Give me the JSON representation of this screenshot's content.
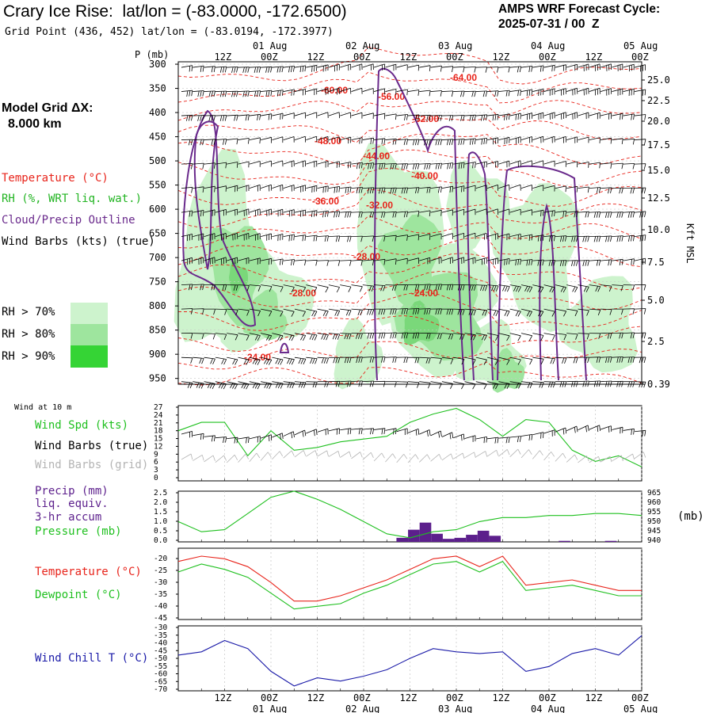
{
  "header": {
    "title": "Crary Ice Rise:  lat/lon = (-83.0000, -172.6500)",
    "subtitle": "Grid Point (436, 452) lat/lon = (-83.0194, -172.3977)",
    "cycle_line1": "AMPS WRF Forecast Cycle:",
    "cycle_line2": "2025-07-31 / 00  Z",
    "grid_line1": "Model Grid ΔX:",
    "grid_line2": "8.000 km"
  },
  "colors": {
    "temp": "#e8241b",
    "rh": "#22b422",
    "cloud": "#6a2a8c",
    "wind": "#000000",
    "windgrid": "#b4b4b4",
    "dew": "#1fc01f",
    "chill": "#1a1aa8",
    "precip": "#5c1f8c",
    "light": "#cdf3cd",
    "mid": "#9ee59e",
    "dark": "#35d435"
  },
  "time_axis": {
    "hour_labels": [
      "12Z",
      "00Z",
      "12Z",
      "00Z",
      "12Z",
      "00Z",
      "12Z",
      "00Z",
      "12Z",
      "00Z"
    ],
    "date_labels": [
      "01 Aug",
      "02 Aug",
      "03 Aug",
      "04 Aug",
      "05 Aug"
    ]
  },
  "sounding": {
    "p_label": "P (mb)",
    "pressure_ticks": [
      "300",
      "350",
      "400",
      "450",
      "500",
      "550",
      "600",
      "650",
      "700",
      "750",
      "800",
      "850",
      "900",
      "950"
    ],
    "height_ticks": [
      "25.0",
      "22.5",
      "20.0",
      "17.5",
      "15.0",
      "12.5",
      "10.0",
      "7.5",
      "5.0",
      "2.5",
      "0.39"
    ],
    "height_axis_label": "Kft MSL",
    "legend": {
      "temperature": "Temperature (°C)",
      "rh": "RH (%, WRT liq. wat.)",
      "cloud": "Cloud/Precip Outline",
      "wind": "Wind Barbs (kts) (true)"
    },
    "rh_legend": [
      "RH > 70%",
      "RH > 80%",
      "RH > 90%"
    ],
    "isotherm_labels": [
      "-64.00",
      "-60.00",
      "-56.00",
      "-52.00",
      "-48.00",
      "-44.00",
      "-40.00",
      "-36.00",
      "-32.00",
      "-28.00",
      "-28.00",
      "-24.00",
      "-24.00"
    ]
  },
  "surface": {
    "wind_label": "Wind at 10 m",
    "legend": {
      "spd": "Wind Spd (kts)",
      "barbs": "Wind Barbs (true)",
      "grid": "Wind Barbs (grid)"
    },
    "ticks": [
      "27",
      "24",
      "21",
      "18",
      "15",
      "12",
      "9",
      "6",
      "3",
      "0"
    ]
  },
  "precip": {
    "legend": [
      "Precip (mm)",
      "liq. equiv.",
      "3-hr accum",
      "Pressure (mb)"
    ],
    "left_ticks": [
      "2.5",
      "2.0",
      "1.5",
      "1.0",
      "0.5",
      "0.0"
    ],
    "right_ticks": [
      "965",
      "960",
      "955",
      "950",
      "945",
      "940"
    ],
    "right_unit": "(mb)"
  },
  "temp_panel": {
    "legend": [
      "Temperature (°C)",
      "Dewpoint (°C)"
    ],
    "ticks": [
      "-20",
      "-25",
      "-30",
      "-35",
      "-40",
      "-45"
    ]
  },
  "chill_panel": {
    "legend": "Wind Chill T (°C)",
    "ticks": [
      "-30",
      "-35",
      "-40",
      "-45",
      "-50",
      "-55",
      "-60",
      "-65",
      "-70"
    ]
  },
  "chart_data": [
    {
      "type": "line",
      "name_hint": "surface wind",
      "x_hours": [
        0,
        6,
        12,
        18,
        24,
        30,
        36,
        42,
        48,
        54,
        60,
        66,
        72,
        78,
        84,
        90,
        96,
        102,
        108,
        114,
        120
      ],
      "series": [
        {
          "name": "Wind Spd (kts)",
          "values": [
            18,
            21,
            21,
            9,
            18,
            11,
            12,
            14,
            15,
            16,
            21,
            24,
            26,
            22,
            16,
            22,
            21,
            11,
            7,
            9,
            5
          ]
        }
      ],
      "ylim": [
        0,
        27
      ]
    },
    {
      "type": "bar",
      "name_hint": "precip and pressure",
      "x_hours": [
        0,
        6,
        12,
        18,
        24,
        30,
        36,
        42,
        48,
        54,
        60,
        66,
        72,
        78,
        84,
        90,
        96,
        102,
        108,
        114,
        120
      ],
      "pressure_mb": [
        950,
        945,
        946,
        954,
        962,
        965,
        961,
        956,
        950,
        944,
        942,
        945,
        946,
        950,
        952,
        952,
        953,
        953,
        954,
        954,
        953
      ],
      "precip_bars": [
        {
          "h": 58,
          "v": 0.2
        },
        {
          "h": 61,
          "v": 0.6
        },
        {
          "h": 64,
          "v": 0.95
        },
        {
          "h": 67,
          "v": 0.4
        },
        {
          "h": 70,
          "v": 0.15
        },
        {
          "h": 73,
          "v": 0.2
        },
        {
          "h": 76,
          "v": 0.35
        },
        {
          "h": 79,
          "v": 0.55
        },
        {
          "h": 82,
          "v": 0.3
        },
        {
          "h": 100,
          "v": 0.05
        },
        {
          "h": 112,
          "v": 0.05
        }
      ],
      "ylim": [
        0,
        2.5
      ]
    },
    {
      "type": "line",
      "name_hint": "temperature and dewpoint",
      "x_hours": [
        0,
        6,
        12,
        18,
        24,
        30,
        36,
        42,
        48,
        54,
        60,
        66,
        72,
        78,
        84,
        90,
        96,
        102,
        108,
        114,
        120
      ],
      "series": [
        {
          "name": "Temperature (°C)",
          "values": [
            -23,
            -21,
            -22,
            -25,
            -31,
            -38,
            -38,
            -36,
            -33,
            -30,
            -26,
            -22,
            -21,
            -25,
            -21,
            -32,
            -31,
            -30,
            -32,
            -34,
            -34
          ]
        },
        {
          "name": "Dewpoint (°C)",
          "values": [
            -27,
            -24,
            -26,
            -29,
            -35,
            -41,
            -40,
            -39,
            -35,
            -32,
            -28,
            -24,
            -23,
            -27,
            -23,
            -34,
            -33,
            -32,
            -34,
            -36,
            -36
          ]
        }
      ],
      "ylim": [
        -45,
        -18
      ]
    },
    {
      "type": "line",
      "name_hint": "wind chill",
      "x_hours": [
        0,
        6,
        12,
        18,
        24,
        30,
        36,
        42,
        48,
        54,
        60,
        66,
        72,
        78,
        84,
        90,
        96,
        102,
        108,
        114,
        120
      ],
      "series": [
        {
          "name": "Wind Chill T (°C)",
          "values": [
            -48,
            -46,
            -39,
            -44,
            -58,
            -67,
            -62,
            -64,
            -61,
            -57,
            -50,
            -44,
            -46,
            -47,
            -46,
            -58,
            -55,
            -47,
            -44,
            -48,
            -36
          ]
        }
      ],
      "ylim": [
        -70,
        -30
      ]
    }
  ]
}
